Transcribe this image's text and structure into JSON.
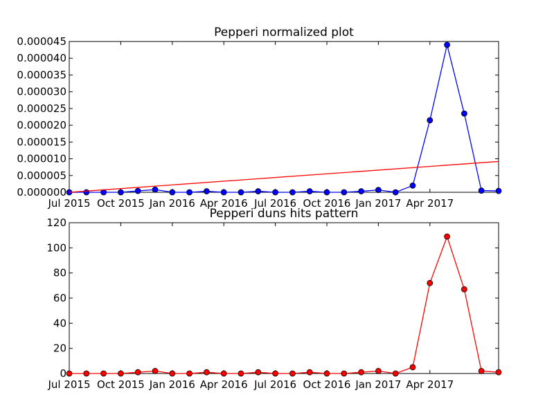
{
  "chart_data": [
    {
      "type": "line",
      "title": "Pepperi normalized plot",
      "xlabel": "",
      "ylabel": "",
      "grid": false,
      "x_ticks": [
        "Jul 2015",
        "Oct 2015",
        "Jan 2016",
        "Apr 2016",
        "Jul 2016",
        "Oct 2016",
        "Jan 2017",
        "Apr 2017"
      ],
      "x_range": [
        "2015-07-01",
        "2017-08-01"
      ],
      "ylim": [
        0,
        4.5e-05
      ],
      "y_ticks": [
        "0.000000",
        "0.000005",
        "0.000010",
        "0.000015",
        "0.000020",
        "0.000025",
        "0.000030",
        "0.000035",
        "0.000040",
        "0.000045"
      ],
      "series": [
        {
          "color": "#0000ff",
          "marker": "circle",
          "x": [
            "2015-07-01",
            "2015-08-01",
            "2015-09-01",
            "2015-10-01",
            "2015-11-01",
            "2015-12-01",
            "2016-01-01",
            "2016-02-01",
            "2016-03-01",
            "2016-04-01",
            "2016-05-01",
            "2016-06-01",
            "2016-07-01",
            "2016-08-01",
            "2016-09-01",
            "2016-10-01",
            "2016-11-01",
            "2016-12-01",
            "2017-01-01",
            "2017-02-01",
            "2017-03-01",
            "2017-04-01",
            "2017-05-01",
            "2017-06-01",
            "2017-07-01",
            "2017-08-01"
          ],
          "y": [
            0.0,
            0.0,
            0.0,
            0.0,
            4e-07,
            8e-07,
            0.0,
            0.0,
            3e-07,
            0.0,
            0.0,
            3e-07,
            0.0,
            0.0,
            3e-07,
            0.0,
            0.0,
            3e-07,
            7e-07,
            0.0,
            2e-06,
            2.15e-05,
            4.4e-05,
            2.35e-05,
            5e-07,
            4e-07
          ]
        },
        {
          "color": "#ff0000",
          "marker": "none",
          "x": [
            "2015-07-01",
            "2017-08-01"
          ],
          "y": [
            0.0,
            9.2e-06
          ]
        }
      ]
    },
    {
      "type": "line",
      "title": "Pepperi duns hits pattern",
      "xlabel": "",
      "ylabel": "",
      "grid": false,
      "x_ticks": [
        "Jul 2015",
        "Oct 2015",
        "Jan 2016",
        "Apr 2016",
        "Jul 2016",
        "Oct 2016",
        "Jan 2017",
        "Apr 2017"
      ],
      "x_range": [
        "2015-07-01",
        "2017-08-01"
      ],
      "ylim": [
        0,
        120
      ],
      "y_ticks": [
        "0",
        "20",
        "40",
        "60",
        "80",
        "100",
        "120"
      ],
      "series": [
        {
          "color": "#ff0000",
          "marker": "circle",
          "x": [
            "2015-07-01",
            "2015-08-01",
            "2015-09-01",
            "2015-10-01",
            "2015-11-01",
            "2015-12-01",
            "2016-01-01",
            "2016-02-01",
            "2016-03-01",
            "2016-04-01",
            "2016-05-01",
            "2016-06-01",
            "2016-07-01",
            "2016-08-01",
            "2016-09-01",
            "2016-10-01",
            "2016-11-01",
            "2016-12-01",
            "2017-01-01",
            "2017-02-01",
            "2017-03-01",
            "2017-04-01",
            "2017-05-01",
            "2017-06-01",
            "2017-07-01",
            "2017-08-01"
          ],
          "y": [
            0,
            0,
            0,
            0,
            1,
            2,
            0,
            0,
            1,
            0,
            0,
            1,
            0,
            0,
            1,
            0,
            0,
            1,
            2,
            0,
            5,
            72,
            109,
            67,
            2,
            1
          ]
        }
      ]
    }
  ]
}
